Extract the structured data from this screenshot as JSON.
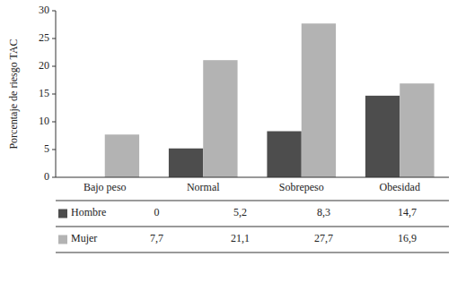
{
  "chart_data": {
    "type": "bar",
    "categories": [
      "Bajo peso",
      "Normal",
      "Sobrepeso",
      "Obesidad"
    ],
    "series": [
      {
        "name": "Hombre",
        "color": "#4d4d4d",
        "values": [
          0,
          5.2,
          8.3,
          14.7
        ],
        "value_labels": [
          "0",
          "5,2",
          "8,3",
          "14,7"
        ]
      },
      {
        "name": "Mujer",
        "color": "#b3b3b3",
        "values": [
          7.7,
          21.1,
          27.7,
          16.9
        ],
        "value_labels": [
          "7,7",
          "21,1",
          "27,7",
          "16,9"
        ]
      }
    ],
    "y_label": "Porcentaje de riesgo TAC",
    "ylim": [
      0,
      30
    ],
    "yticks": [
      0,
      5,
      10,
      15,
      20,
      25,
      30
    ],
    "grid": false,
    "data_labels": true
  }
}
